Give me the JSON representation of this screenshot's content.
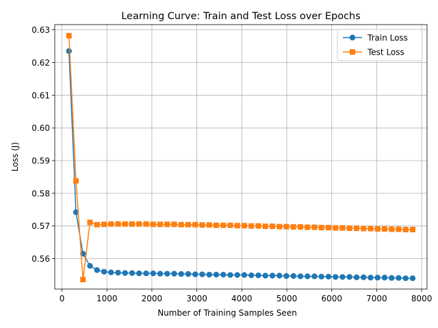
{
  "chart_data": {
    "type": "line",
    "title": "Learning Curve: Train and Test Loss over Epochs",
    "xlabel": "Number of Training Samples Seen",
    "ylabel": "Loss (J)",
    "xlim": [
      -160,
      8120
    ],
    "ylim": [
      0.5507,
      0.6316
    ],
    "xticks": [
      0,
      1000,
      2000,
      3000,
      4000,
      5000,
      6000,
      7000,
      8000
    ],
    "yticks": [
      0.56,
      0.57,
      0.58,
      0.59,
      0.6,
      0.61,
      0.62,
      0.63
    ],
    "grid": true,
    "legend_position": "top-right",
    "x": [
      156,
      312,
      468,
      624,
      780,
      936,
      1092,
      1248,
      1404,
      1560,
      1716,
      1872,
      2028,
      2184,
      2340,
      2496,
      2652,
      2808,
      2964,
      3120,
      3276,
      3432,
      3588,
      3744,
      3900,
      4056,
      4212,
      4368,
      4524,
      4680,
      4836,
      4992,
      5148,
      5304,
      5460,
      5616,
      5772,
      5928,
      6084,
      6240,
      6396,
      6552,
      6708,
      6864,
      7020,
      7176,
      7332,
      7488,
      7644,
      7800
    ],
    "series": [
      {
        "name": "Train Loss",
        "color": "#1f77b4",
        "marker": "circle",
        "values": [
          0.6235,
          0.5742,
          0.5615,
          0.5578,
          0.5565,
          0.556,
          0.5558,
          0.5557,
          0.5556,
          0.5556,
          0.5555,
          0.5555,
          0.5555,
          0.5554,
          0.5554,
          0.5554,
          0.5553,
          0.5553,
          0.5552,
          0.5552,
          0.5551,
          0.5551,
          0.5551,
          0.555,
          0.555,
          0.555,
          0.5549,
          0.5549,
          0.5548,
          0.5548,
          0.5548,
          0.5547,
          0.5547,
          0.5546,
          0.5546,
          0.5546,
          0.5545,
          0.5545,
          0.5544,
          0.5544,
          0.5544,
          0.5543,
          0.5543,
          0.5542,
          0.5542,
          0.5542,
          0.5541,
          0.5541,
          0.554,
          0.554
        ]
      },
      {
        "name": "Test Loss",
        "color": "#ff7f0e",
        "marker": "square",
        "values": [
          0.6282,
          0.5838,
          0.5536,
          0.5711,
          0.5704,
          0.5705,
          0.5706,
          0.5706,
          0.5706,
          0.5706,
          0.5706,
          0.5706,
          0.5705,
          0.5705,
          0.5705,
          0.5705,
          0.5704,
          0.5704,
          0.5704,
          0.5703,
          0.5703,
          0.5702,
          0.5702,
          0.5702,
          0.5701,
          0.5701,
          0.57,
          0.57,
          0.5699,
          0.5699,
          0.5698,
          0.5698,
          0.5697,
          0.5697,
          0.5696,
          0.5696,
          0.5695,
          0.5695,
          0.5694,
          0.5694,
          0.5693,
          0.5693,
          0.5692,
          0.5692,
          0.5691,
          0.5691,
          0.569,
          0.569,
          0.5689,
          0.5689
        ]
      }
    ]
  }
}
